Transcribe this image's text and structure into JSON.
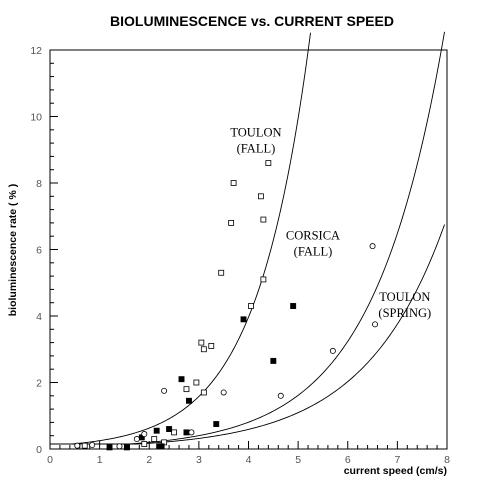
{
  "chart_data": {
    "type": "scatter",
    "title": "BIOLUMINESCENCE vs. CURRENT SPEED",
    "xlabel": "current speed (cm/s)",
    "ylabel": "bioluminescence rate ( % )",
    "xlim": [
      0,
      8
    ],
    "ylim": [
      0,
      12
    ],
    "xticks": [
      0,
      1,
      2,
      3,
      4,
      5,
      6,
      7,
      8
    ],
    "yticks": [
      0,
      2,
      4,
      6,
      8,
      10,
      12
    ],
    "grid": false,
    "legend": "none",
    "annotations": [
      {
        "lines": [
          "TOULON",
          "(FALL)"
        ],
        "x": 4.15,
        "y": 9.4
      },
      {
        "lines": [
          "CORSICA",
          "(FALL)"
        ],
        "x": 5.3,
        "y": 6.3
      },
      {
        "lines": [
          "TOULON",
          "(SPRING)"
        ],
        "x": 7.15,
        "y": 4.45
      }
    ],
    "series": [
      {
        "marker": "open-square",
        "points": [
          [
            0.7,
            0.1
          ],
          [
            1.9,
            0.15
          ],
          [
            2.1,
            0.3
          ],
          [
            2.3,
            0.2
          ],
          [
            2.5,
            0.5
          ],
          [
            2.75,
            1.8
          ],
          [
            2.95,
            2.0
          ],
          [
            3.05,
            3.2
          ],
          [
            3.1,
            3.0
          ],
          [
            3.1,
            1.7
          ],
          [
            3.25,
            3.1
          ],
          [
            3.45,
            5.3
          ],
          [
            3.65,
            6.8
          ],
          [
            3.7,
            8.0
          ],
          [
            4.05,
            4.3
          ],
          [
            4.25,
            7.6
          ],
          [
            4.3,
            6.9
          ],
          [
            4.3,
            5.1
          ],
          [
            4.4,
            8.6
          ]
        ]
      },
      {
        "marker": "filled-square",
        "points": [
          [
            1.2,
            0.05
          ],
          [
            1.55,
            0.05
          ],
          [
            1.85,
            0.35
          ],
          [
            2.15,
            0.55
          ],
          [
            2.2,
            0.08
          ],
          [
            2.25,
            0.08
          ],
          [
            2.4,
            0.6
          ],
          [
            2.65,
            2.1
          ],
          [
            2.75,
            0.5
          ],
          [
            2.8,
            1.45
          ],
          [
            3.35,
            0.75
          ],
          [
            3.9,
            3.9
          ],
          [
            4.5,
            2.65
          ],
          [
            4.9,
            4.3
          ]
        ]
      },
      {
        "marker": "open-circle",
        "points": [
          [
            0.55,
            0.1
          ],
          [
            0.85,
            0.12
          ],
          [
            1.4,
            0.08
          ],
          [
            1.75,
            0.3
          ],
          [
            1.9,
            0.45
          ],
          [
            2.3,
            1.75
          ],
          [
            2.85,
            0.5
          ],
          [
            3.5,
            1.7
          ],
          [
            4.65,
            1.6
          ],
          [
            5.7,
            2.95
          ],
          [
            6.5,
            6.1
          ],
          [
            6.55,
            3.75
          ]
        ]
      }
    ],
    "curves": [
      {
        "label": "TOULON (FALL)",
        "formula": "y = max(0.15, 0.1*exp(0.92*x))",
        "x_range": [
          0,
          5.25
        ]
      },
      {
        "label": "CORSICA (FALL)",
        "formula": "y = max(0.15, 0.05*exp(0.695*x))",
        "x_range": [
          0,
          7.95
        ]
      },
      {
        "label": "TOULON (SPRING)",
        "formula": "y = max(0.15, 0.05*exp(0.617*x))",
        "x_range": [
          0,
          7.95
        ]
      }
    ]
  }
}
